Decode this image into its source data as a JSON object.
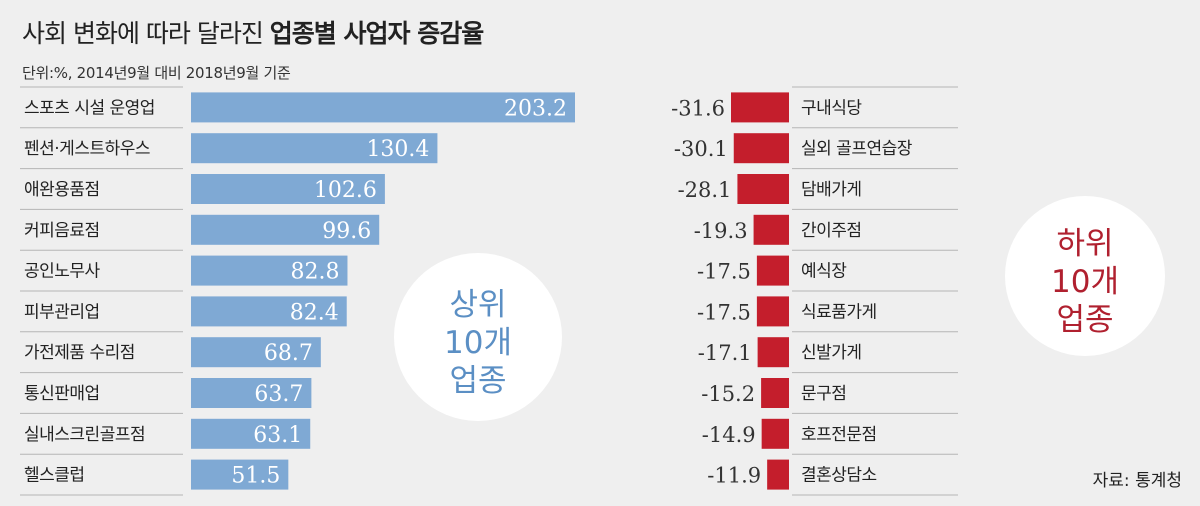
{
  "header": {
    "title_prefix": "사회 변화에 따라 달라진 ",
    "title_strong": "업종별 사업자 증감율",
    "subtitle": "단위:%, 2014년9월 대비 2018년9월 기준"
  },
  "source": "자료: 통계청",
  "colors": {
    "top_bar": "#7fa9d4",
    "bottom_bar": "#c41e2c",
    "top_badge_text": "#5b8fc4",
    "bottom_badge_text": "#b0202f",
    "background": "#efefef"
  },
  "chart_data": [
    {
      "type": "bar",
      "orientation": "horizontal",
      "badge": [
        "상위",
        "10개",
        "업종"
      ],
      "categories": [
        "스포츠 시설 운영업",
        "펜션·게스트하우스",
        "애완용품점",
        "커피음료점",
        "공인노무사",
        "피부관리업",
        "가전제품 수리점",
        "통신판매업",
        "실내스크린골프점",
        "헬스클럽"
      ],
      "values": [
        203.2,
        130.4,
        102.6,
        99.6,
        82.8,
        82.4,
        68.7,
        63.7,
        63.1,
        51.5
      ],
      "value_labels": [
        "203.2",
        "130.4",
        "102.6",
        "99.6",
        "82.8",
        "82.4",
        "68.7",
        "63.7",
        "63.1",
        "51.5"
      ]
    },
    {
      "type": "bar",
      "orientation": "horizontal",
      "badge": [
        "하위",
        "10개",
        "업종"
      ],
      "categories": [
        "구내식당",
        "실외 골프연습장",
        "담배가게",
        "간이주점",
        "예식장",
        "식료품가게",
        "신발가게",
        "문구점",
        "호프전문점",
        "결혼상담소"
      ],
      "values": [
        -31.6,
        -30.1,
        -28.1,
        -19.3,
        -17.5,
        -17.5,
        -17.1,
        -15.2,
        -14.9,
        -11.9
      ],
      "value_labels": [
        "-31.6",
        "-30.1",
        "-28.1",
        "-19.3",
        "-17.5",
        "-17.5",
        "-17.1",
        "-15.2",
        "-14.9",
        "-11.9"
      ]
    }
  ]
}
